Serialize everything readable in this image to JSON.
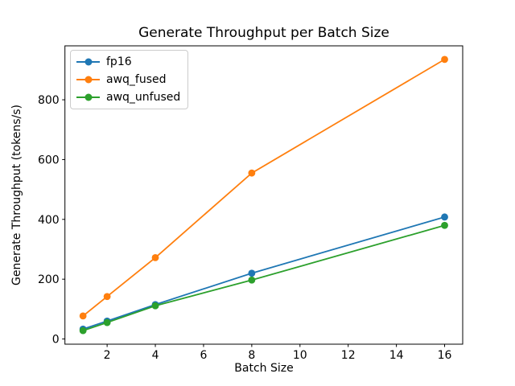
{
  "chart_data": {
    "type": "line",
    "title": "Generate Throughput per Batch Size",
    "xlabel": "Batch Size",
    "ylabel": "Generate Throughput (tokens/s)",
    "x": [
      1,
      2,
      4,
      8,
      16
    ],
    "series": [
      {
        "name": "fp16",
        "color": "#1f77b4",
        "values": [
          33,
          60,
          115,
          220,
          408
        ]
      },
      {
        "name": "awq_fused",
        "color": "#ff7f0e",
        "values": [
          77,
          142,
          272,
          555,
          935
        ]
      },
      {
        "name": "awq_unfused",
        "color": "#2ca02c",
        "values": [
          28,
          55,
          111,
          197,
          380
        ]
      }
    ],
    "xticks": [
      2,
      4,
      6,
      8,
      10,
      12,
      14,
      16
    ],
    "yticks": [
      0,
      200,
      400,
      600,
      800
    ],
    "xlim": [
      0.25,
      16.75
    ],
    "ylim": [
      -17.4,
      980.4
    ],
    "grid": false,
    "legend_position": "upper left",
    "marker": "o",
    "background_color": "#ffffff",
    "axis_color": "#000000"
  }
}
